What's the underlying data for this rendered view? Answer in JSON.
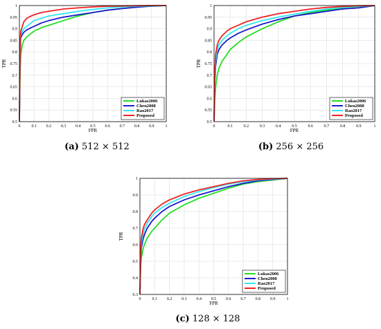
{
  "figure": {
    "panels": [
      {
        "caption_letter": "(a)",
        "caption_size": "512 × 512"
      },
      {
        "caption_letter": "(b)",
        "caption_size": "256 × 256"
      },
      {
        "caption_letter": "(c)",
        "caption_size": "128 × 128"
      }
    ]
  },
  "chart_data": [
    {
      "type": "line",
      "xlabel": "FPR",
      "ylabel": "TPR",
      "xlim": [
        0,
        1
      ],
      "ylim": [
        0.5,
        1
      ],
      "xticks": [
        "0",
        "0.1",
        "0.2",
        "0.3",
        "0.4",
        "0.5",
        "0.6",
        "0.7",
        "0.8",
        "0.9",
        "1"
      ],
      "yticks": [
        "0.5",
        "0.55",
        "0.6",
        "0.65",
        "0.7",
        "0.75",
        "0.8",
        "0.85",
        "0.9",
        "0.95",
        "1"
      ],
      "grid": true,
      "legend_position": "bottom-right",
      "series": [
        {
          "name": "Lukas2006",
          "color": "#22dd22",
          "x": [
            0,
            0.005,
            0.01,
            0.02,
            0.03,
            0.05,
            0.08,
            0.1,
            0.15,
            0.2,
            0.3,
            0.4,
            0.5,
            0.6,
            0.7,
            0.8,
            0.9,
            1
          ],
          "y": [
            0.5,
            0.72,
            0.79,
            0.83,
            0.85,
            0.865,
            0.88,
            0.89,
            0.905,
            0.915,
            0.935,
            0.955,
            0.97,
            0.98,
            0.987,
            0.993,
            0.997,
            1
          ]
        },
        {
          "name": "Chen2008",
          "color": "#1a1acc",
          "x": [
            0,
            0.005,
            0.01,
            0.02,
            0.03,
            0.05,
            0.08,
            0.1,
            0.15,
            0.2,
            0.3,
            0.4,
            0.5,
            0.6,
            0.7,
            0.8,
            0.9,
            1
          ],
          "y": [
            0.5,
            0.8,
            0.86,
            0.875,
            0.885,
            0.895,
            0.905,
            0.91,
            0.925,
            0.935,
            0.95,
            0.96,
            0.97,
            0.98,
            0.987,
            0.993,
            0.998,
            1
          ]
        },
        {
          "name": "Rao2017",
          "color": "#33e5f0",
          "x": [
            0,
            0.005,
            0.01,
            0.02,
            0.03,
            0.05,
            0.08,
            0.1,
            0.15,
            0.2,
            0.3,
            0.4,
            0.5,
            0.6,
            0.7,
            0.8,
            0.9,
            1
          ],
          "y": [
            0.5,
            0.82,
            0.87,
            0.89,
            0.9,
            0.91,
            0.925,
            0.935,
            0.945,
            0.955,
            0.965,
            0.975,
            0.983,
            0.99,
            0.994,
            0.997,
            0.999,
            1
          ]
        },
        {
          "name": "Proposed",
          "color": "#ee2222",
          "x": [
            0,
            0.005,
            0.01,
            0.02,
            0.03,
            0.05,
            0.08,
            0.1,
            0.15,
            0.2,
            0.3,
            0.4,
            0.5,
            0.6,
            0.7,
            0.8,
            0.9,
            1
          ],
          "y": [
            0.5,
            0.85,
            0.89,
            0.91,
            0.93,
            0.945,
            0.955,
            0.96,
            0.97,
            0.975,
            0.985,
            0.99,
            0.994,
            0.997,
            0.998,
            0.999,
            1,
            1
          ]
        }
      ]
    },
    {
      "type": "line",
      "xlabel": "FPR",
      "ylabel": "TPR",
      "xlim": [
        0,
        1
      ],
      "ylim": [
        0.5,
        1
      ],
      "xticks": [
        "0",
        "0.1",
        "0.2",
        "0.3",
        "0.4",
        "0.5",
        "0.6",
        "0.7",
        "0.8",
        "0.9",
        "1"
      ],
      "yticks": [
        "0.5",
        "0.55",
        "0.6",
        "0.65",
        "0.7",
        "0.75",
        "0.8",
        "0.85",
        "0.9",
        "0.95",
        "1"
      ],
      "grid": true,
      "legend_position": "bottom-right",
      "series": [
        {
          "name": "Lukas2006",
          "color": "#22dd22",
          "x": [
            0,
            0.005,
            0.01,
            0.02,
            0.03,
            0.05,
            0.08,
            0.1,
            0.15,
            0.2,
            0.3,
            0.4,
            0.5,
            0.6,
            0.7,
            0.8,
            0.9,
            1
          ],
          "y": [
            0.5,
            0.6,
            0.65,
            0.7,
            0.73,
            0.76,
            0.79,
            0.81,
            0.84,
            0.865,
            0.9,
            0.93,
            0.955,
            0.97,
            0.98,
            0.99,
            0.996,
            1
          ]
        },
        {
          "name": "Chen2008",
          "color": "#1a1acc",
          "x": [
            0,
            0.005,
            0.01,
            0.02,
            0.03,
            0.05,
            0.08,
            0.1,
            0.15,
            0.2,
            0.3,
            0.4,
            0.5,
            0.6,
            0.7,
            0.8,
            0.9,
            0.95,
            1
          ],
          "y": [
            0.5,
            0.68,
            0.74,
            0.79,
            0.81,
            0.83,
            0.85,
            0.86,
            0.88,
            0.895,
            0.92,
            0.94,
            0.955,
            0.965,
            0.975,
            0.985,
            0.99,
            0.995,
            1
          ]
        },
        {
          "name": "Rao2017",
          "color": "#33e5f0",
          "x": [
            0,
            0.005,
            0.01,
            0.02,
            0.03,
            0.05,
            0.08,
            0.1,
            0.15,
            0.2,
            0.3,
            0.4,
            0.5,
            0.6,
            0.7,
            0.8,
            0.9,
            1
          ],
          "y": [
            0.5,
            0.7,
            0.76,
            0.81,
            0.83,
            0.85,
            0.87,
            0.88,
            0.9,
            0.915,
            0.935,
            0.95,
            0.963,
            0.975,
            0.985,
            0.992,
            0.997,
            1
          ]
        },
        {
          "name": "Proposed",
          "color": "#ee2222",
          "x": [
            0,
            0.005,
            0.01,
            0.02,
            0.03,
            0.05,
            0.08,
            0.1,
            0.15,
            0.2,
            0.3,
            0.4,
            0.5,
            0.6,
            0.7,
            0.8,
            0.9,
            1
          ],
          "y": [
            0.5,
            0.72,
            0.79,
            0.83,
            0.85,
            0.87,
            0.89,
            0.9,
            0.915,
            0.93,
            0.95,
            0.965,
            0.975,
            0.985,
            0.992,
            0.996,
            0.999,
            1
          ]
        }
      ]
    },
    {
      "type": "line",
      "xlabel": "FPR",
      "ylabel": "TPR",
      "xlim": [
        0,
        1
      ],
      "ylim": [
        0.3,
        1
      ],
      "xticks": [
        "0",
        "0.1",
        "0.2",
        "0.3",
        "0.4",
        "0.5",
        "0.6",
        "0.7",
        "0.8",
        "0.9",
        "1"
      ],
      "yticks": [
        "0.3",
        "0.4",
        "0.5",
        "0.6",
        "0.7",
        "0.8",
        "0.9",
        "1"
      ],
      "grid": true,
      "legend_position": "bottom-right",
      "series": [
        {
          "name": "Lukas2006",
          "color": "#22dd22",
          "x": [
            0,
            0.005,
            0.01,
            0.02,
            0.03,
            0.05,
            0.08,
            0.1,
            0.15,
            0.2,
            0.3,
            0.4,
            0.5,
            0.6,
            0.7,
            0.8,
            0.9,
            1
          ],
          "y": [
            0.3,
            0.47,
            0.52,
            0.57,
            0.6,
            0.64,
            0.68,
            0.7,
            0.75,
            0.79,
            0.84,
            0.88,
            0.91,
            0.94,
            0.965,
            0.98,
            0.99,
            1
          ]
        },
        {
          "name": "Chen2008",
          "color": "#1a1acc",
          "x": [
            0,
            0.005,
            0.01,
            0.02,
            0.03,
            0.05,
            0.08,
            0.1,
            0.15,
            0.2,
            0.3,
            0.4,
            0.5,
            0.6,
            0.7,
            0.8,
            0.9,
            1
          ],
          "y": [
            0.3,
            0.52,
            0.58,
            0.63,
            0.66,
            0.7,
            0.74,
            0.76,
            0.8,
            0.83,
            0.87,
            0.9,
            0.925,
            0.95,
            0.97,
            0.985,
            0.993,
            1
          ]
        },
        {
          "name": "Rao2017",
          "color": "#33e5f0",
          "x": [
            0,
            0.005,
            0.01,
            0.02,
            0.03,
            0.05,
            0.08,
            0.1,
            0.15,
            0.2,
            0.3,
            0.4,
            0.5,
            0.6,
            0.7,
            0.8,
            0.9,
            1
          ],
          "y": [
            0.3,
            0.55,
            0.61,
            0.66,
            0.69,
            0.73,
            0.77,
            0.79,
            0.825,
            0.85,
            0.89,
            0.92,
            0.945,
            0.965,
            0.98,
            0.99,
            0.996,
            1
          ]
        },
        {
          "name": "Proposed",
          "color": "#ee2222",
          "x": [
            0,
            0.005,
            0.01,
            0.02,
            0.03,
            0.05,
            0.08,
            0.1,
            0.15,
            0.2,
            0.3,
            0.4,
            0.5,
            0.6,
            0.7,
            0.8,
            0.9,
            1
          ],
          "y": [
            0.3,
            0.58,
            0.64,
            0.69,
            0.72,
            0.75,
            0.79,
            0.81,
            0.845,
            0.87,
            0.905,
            0.93,
            0.95,
            0.97,
            0.985,
            0.993,
            0.998,
            1
          ]
        }
      ]
    }
  ]
}
